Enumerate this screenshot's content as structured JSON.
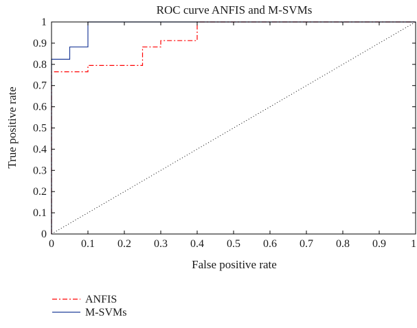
{
  "chart_data": {
    "type": "line",
    "title": "ROC curve ANFIS and M-SVMs",
    "xlabel": "False positive rate",
    "ylabel": "True positive rate",
    "xlim": [
      0,
      1
    ],
    "ylim": [
      0,
      1
    ],
    "xticks": [
      "0",
      "0.1",
      "0.2",
      "0.3",
      "0.4",
      "0.5",
      "0.6",
      "0.7",
      "0.8",
      "0.9",
      "1"
    ],
    "yticks": [
      "0",
      "0.1",
      "0.2",
      "0.3",
      "0.4",
      "0.5",
      "0.6",
      "0.7",
      "0.8",
      "0.9",
      "1"
    ],
    "grid": false,
    "legend_position": "below-left",
    "series": [
      {
        "name": "ANFIS",
        "color": "#ff0000",
        "style": "dash-dot",
        "x": [
          0,
          0,
          0.1,
          0.1,
          0.25,
          0.25,
          0.3,
          0.3,
          0.4,
          0.4,
          1
        ],
        "y": [
          0,
          0.765,
          0.765,
          0.795,
          0.795,
          0.882,
          0.882,
          0.912,
          0.912,
          1,
          1
        ]
      },
      {
        "name": "M-SVMs",
        "color": "#1f3d99",
        "style": "solid",
        "x": [
          0,
          0,
          0.05,
          0.05,
          0.1,
          0.1,
          1
        ],
        "y": [
          0,
          0.824,
          0.824,
          0.882,
          0.882,
          1,
          1
        ]
      }
    ],
    "reference_line": {
      "style": "dotted",
      "color": "#000000",
      "x": [
        0,
        1
      ],
      "y": [
        0,
        1
      ]
    }
  }
}
